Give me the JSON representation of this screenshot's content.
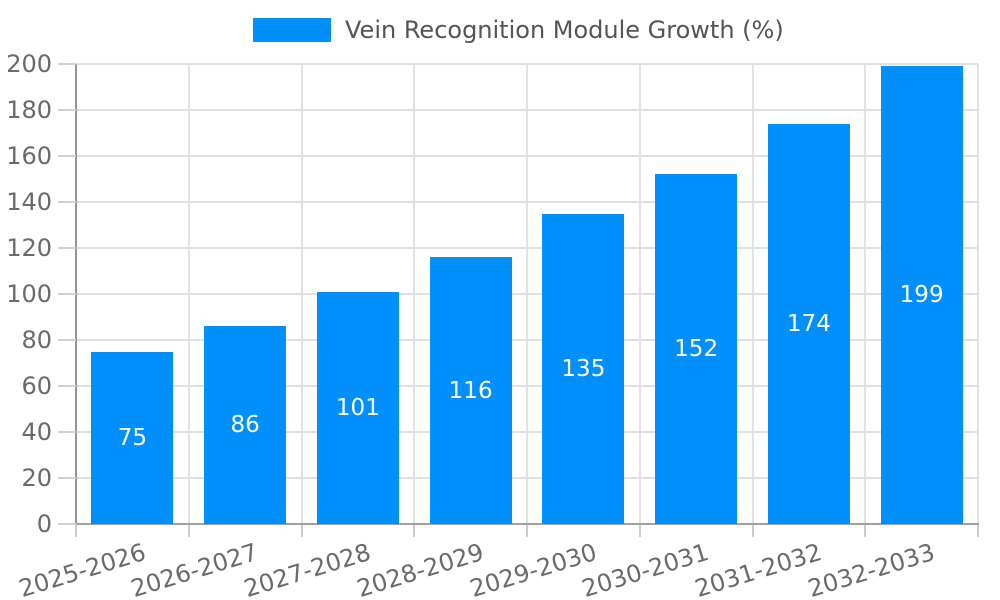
{
  "chart_data": {
    "type": "bar",
    "legend": "Vein Recognition Module Growth (%)",
    "legend_position": "top-center",
    "categories": [
      "2025-2026",
      "2026-2027",
      "2027-2028",
      "2028-2029",
      "2029-2030",
      "2030-2031",
      "2031-2032",
      "2032-2033"
    ],
    "values": [
      75,
      86,
      101,
      116,
      135,
      152,
      174,
      199
    ],
    "yticks": [
      0,
      20,
      40,
      60,
      80,
      100,
      120,
      140,
      160,
      180,
      200
    ],
    "ylim": [
      0,
      200
    ],
    "grid": true,
    "bar_color": "#008FFB",
    "value_label_color": "#FFFFFF",
    "axis_text_color": "#6a6a6a",
    "grid_color": "#e0e0e0"
  }
}
